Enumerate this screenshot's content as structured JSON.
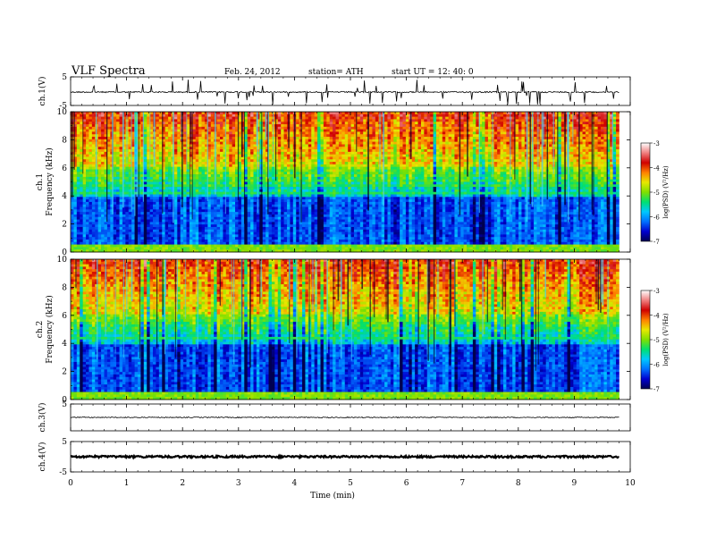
{
  "header": {
    "title": "VLF  Spectra",
    "date": "Feb. 24, 2012",
    "station": "station= ATH",
    "start": "start  UT  =    12: 40: 0"
  },
  "chart_data": [
    {
      "type": "line",
      "panel": "ch1-waveform",
      "ylabel": "ch.1(V)",
      "ylim": [
        -5,
        5
      ],
      "yticks": [
        "5",
        "-5"
      ],
      "description_series": "noisy waveform near zero with frequent spikes"
    },
    {
      "type": "heatmap",
      "panel": "ch1-spectrogram",
      "ylabel_line1": "ch.1",
      "ylabel_line2": "Frequency  (kHz)",
      "ylim": [
        0,
        10
      ],
      "yticks": [
        "0",
        "2",
        "4",
        "6",
        "8",
        "10"
      ],
      "colorbar": {
        "label": "log(PSD) (V²/Hz)",
        "range": [
          -7,
          -3
        ],
        "ticks": [
          "-3",
          "-4",
          "-5",
          "-6",
          "-7"
        ]
      }
    },
    {
      "type": "heatmap",
      "panel": "ch2-spectrogram",
      "ylabel_line1": "ch.2",
      "ylabel_line2": "Frequency  (kHz)",
      "ylim": [
        0,
        10
      ],
      "yticks": [
        "0",
        "2",
        "4",
        "6",
        "8",
        "10"
      ],
      "colorbar": {
        "label": "log(PSD) (V²/Hz)",
        "range": [
          -7,
          -3
        ],
        "ticks": [
          "-3",
          "-4",
          "-5",
          "-6",
          "-7"
        ]
      }
    },
    {
      "type": "line",
      "panel": "ch3-waveform",
      "ylabel": "ch.3(V)",
      "ylim": [
        -5,
        5
      ],
      "yticks": [
        "5"
      ]
    },
    {
      "type": "line",
      "panel": "ch4-waveform",
      "ylabel": "ch.4(V)",
      "ylim": [
        -5,
        5
      ],
      "yticks": [
        "5",
        "-5"
      ]
    }
  ],
  "xaxis": {
    "label": "Time  (min)",
    "range": [
      0,
      10
    ],
    "data_end": 9.8,
    "ticks": [
      "0",
      "1",
      "2",
      "3",
      "4",
      "5",
      "6",
      "7",
      "8",
      "9",
      "10"
    ]
  },
  "colors": {
    "colorbar_stops": [
      "#000050",
      "#0000d0",
      "#0070ff",
      "#00c8ff",
      "#00e070",
      "#80e000",
      "#e8e800",
      "#ff8000",
      "#d00000",
      "#f08080",
      "#ffffff"
    ]
  }
}
